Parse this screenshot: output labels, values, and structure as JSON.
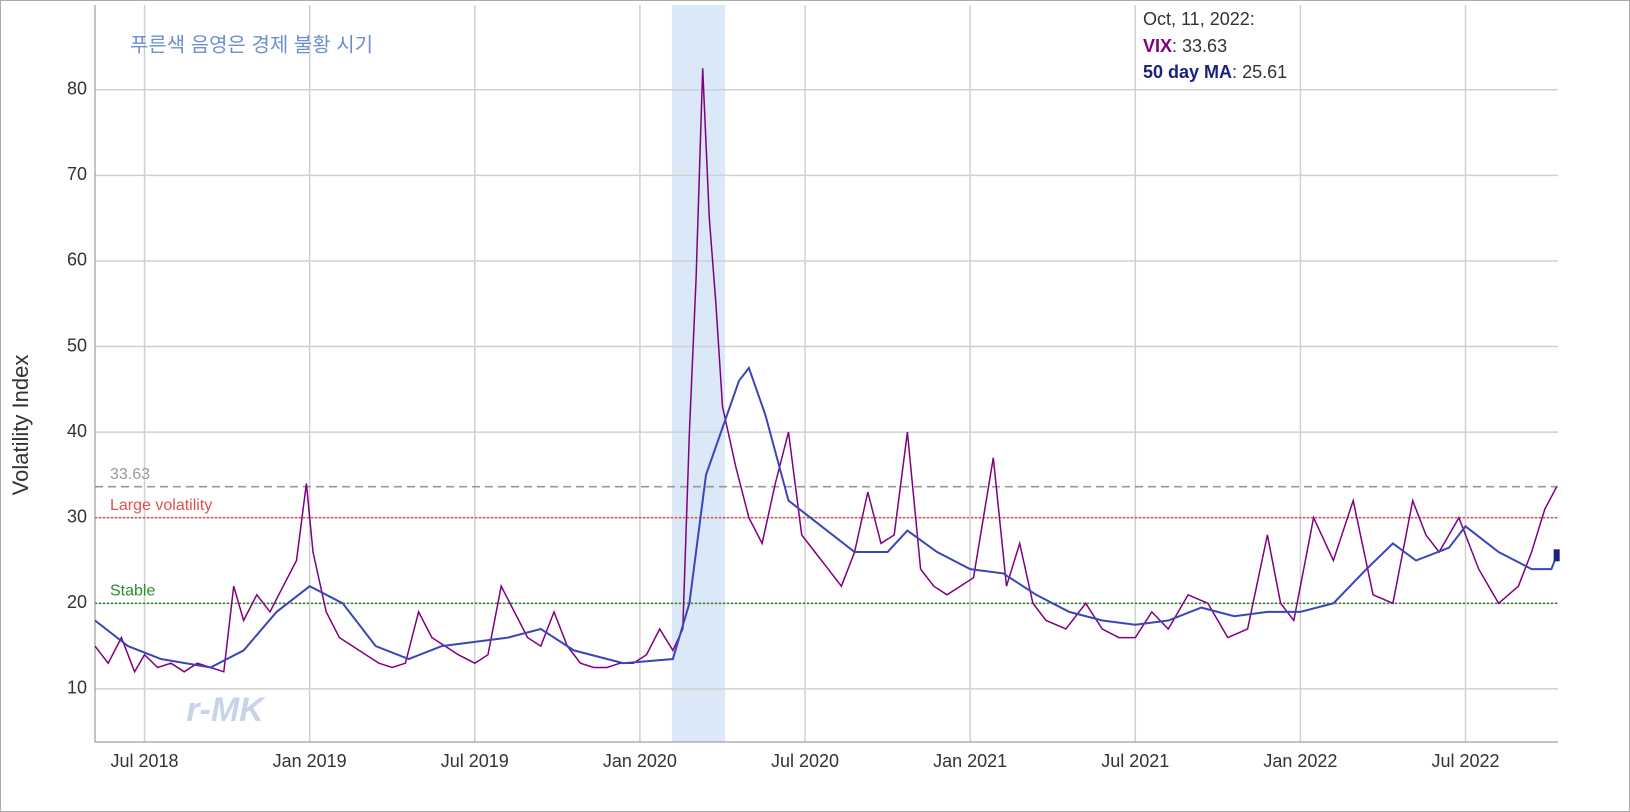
{
  "chart_data": {
    "type": "line",
    "subtitle": "푸른색 음영은 경제 불황 시기",
    "y_label": "Volatility Index",
    "watermark": "r-MK",
    "xlim": [
      2018.35,
      2022.78
    ],
    "ylim": [
      3.8,
      89.9
    ],
    "xticks": [
      {
        "value": 2018.5,
        "label": "Jul 2018"
      },
      {
        "value": 2019.0,
        "label": "Jan 2019"
      },
      {
        "value": 2019.5,
        "label": "Jul 2019"
      },
      {
        "value": 2020.0,
        "label": "Jan 2020"
      },
      {
        "value": 2020.5,
        "label": "Jul 2020"
      },
      {
        "value": 2021.0,
        "label": "Jan 2021"
      },
      {
        "value": 2021.5,
        "label": "Jul 2021"
      },
      {
        "value": 2022.0,
        "label": "Jan 2022"
      },
      {
        "value": 2022.5,
        "label": "Jul 2022"
      }
    ],
    "yticks": [
      10,
      20,
      30,
      40,
      50,
      60,
      70,
      80
    ],
    "grid": true,
    "recession": [
      2020.097,
      2020.258
    ],
    "recession_color": "#dae8f8",
    "reference_lines": [
      {
        "value": 33.63,
        "color": "#999999",
        "dash": "8,5"
      },
      {
        "value": 30,
        "label": "Large volatility",
        "color": "#e05050",
        "dash": "2,2"
      },
      {
        "value": 20,
        "label": "Stable",
        "color": "#2e8b2e",
        "dash": "2,2"
      }
    ],
    "annotation": {
      "date": "Oct, 11, 2022:",
      "separator": ": "
    },
    "series": [
      {
        "name": "VIX",
        "color": "#800080",
        "x": [
          2018.35,
          2018.39,
          2018.43,
          2018.47,
          2018.5,
          2018.54,
          2018.58,
          2018.62,
          2018.66,
          2018.7,
          2018.74,
          2018.77,
          2018.8,
          2018.84,
          2018.88,
          2018.92,
          2018.96,
          2018.99,
          2019.01,
          2019.05,
          2019.09,
          2019.13,
          2019.17,
          2019.21,
          2019.25,
          2019.29,
          2019.33,
          2019.37,
          2019.41,
          2019.45,
          2019.5,
          2019.54,
          2019.58,
          2019.62,
          2019.66,
          2019.7,
          2019.74,
          2019.78,
          2019.82,
          2019.86,
          2019.9,
          2019.94,
          2019.98,
          2020.02,
          2020.06,
          2020.1,
          2020.13,
          2020.15,
          2020.17,
          2020.19,
          2020.21,
          2020.23,
          2020.25,
          2020.29,
          2020.33,
          2020.37,
          2020.41,
          2020.45,
          2020.49,
          2020.53,
          2020.57,
          2020.61,
          2020.65,
          2020.69,
          2020.73,
          2020.77,
          2020.81,
          2020.85,
          2020.89,
          2020.93,
          2020.97,
          2021.01,
          2021.07,
          2021.11,
          2021.15,
          2021.19,
          2021.23,
          2021.29,
          2021.35,
          2021.4,
          2021.45,
          2021.5,
          2021.55,
          2021.6,
          2021.66,
          2021.72,
          2021.78,
          2021.84,
          2021.9,
          2021.94,
          2021.98,
          2022.04,
          2022.1,
          2022.16,
          2022.22,
          2022.28,
          2022.34,
          2022.38,
          2022.42,
          2022.48,
          2022.54,
          2022.6,
          2022.66,
          2022.7,
          2022.74,
          2022.776
        ],
        "values": [
          15,
          13,
          16,
          12,
          14,
          12.5,
          13,
          12,
          13,
          12.5,
          12,
          22,
          18,
          21,
          19,
          22,
          25,
          34,
          26,
          19,
          16,
          15,
          14,
          13,
          12.5,
          13,
          19,
          16,
          15,
          14,
          13,
          14,
          22,
          19,
          16,
          15,
          19,
          15,
          13,
          12.5,
          12.5,
          13,
          13,
          14,
          17,
          14.5,
          17,
          40,
          58,
          82.5,
          65,
          55,
          43,
          36,
          30,
          27,
          34,
          40,
          28,
          26,
          24,
          22,
          26,
          33,
          27,
          28,
          40,
          24,
          22,
          21,
          22,
          23,
          37,
          22,
          27,
          20,
          18,
          17,
          20,
          17,
          16,
          16,
          19,
          17,
          21,
          20,
          16,
          17,
          28,
          20,
          18,
          30,
          25,
          32,
          21,
          20,
          32,
          28,
          26,
          30,
          24,
          20,
          22,
          26,
          31,
          33.63
        ]
      },
      {
        "name": "50 day MA",
        "color": "#3a46b8",
        "x": [
          2018.35,
          2018.45,
          2018.55,
          2018.7,
          2018.8,
          2018.9,
          2019.0,
          2019.1,
          2019.2,
          2019.3,
          2019.4,
          2019.5,
          2019.6,
          2019.7,
          2019.8,
          2019.95,
          2020.1,
          2020.15,
          2020.2,
          2020.3,
          2020.33,
          2020.38,
          2020.45,
          2020.55,
          2020.65,
          2020.75,
          2020.81,
          2020.9,
          2021.0,
          2021.1,
          2021.2,
          2021.3,
          2021.4,
          2021.5,
          2021.6,
          2021.7,
          2021.8,
          2021.9,
          2022.0,
          2022.1,
          2022.2,
          2022.28,
          2022.35,
          2022.45,
          2022.5,
          2022.6,
          2022.7,
          2022.76,
          2022.776
        ],
        "values": [
          18,
          15,
          13.5,
          12.5,
          14.5,
          19,
          22,
          20,
          15,
          13.5,
          15,
          15.5,
          16,
          17,
          14.5,
          13,
          13.5,
          20,
          35,
          46,
          47.5,
          42,
          32,
          29,
          26,
          26,
          28.5,
          26,
          24,
          23.5,
          21,
          19,
          18,
          17.5,
          18,
          19.5,
          18.5,
          19,
          19,
          20,
          24,
          27,
          25,
          26.5,
          29,
          26,
          24,
          24,
          25.61
        ]
      }
    ]
  }
}
